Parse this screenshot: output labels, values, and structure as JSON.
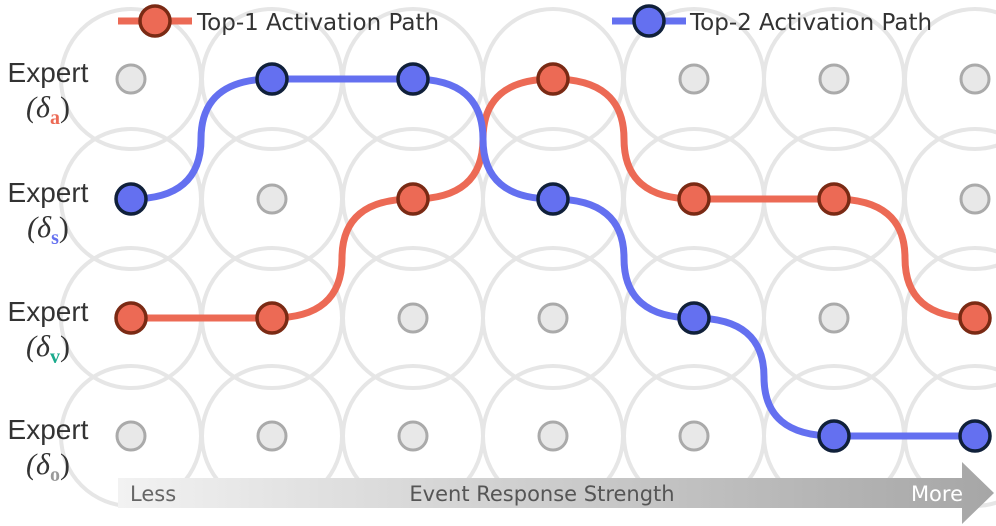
{
  "legend": {
    "items": [
      {
        "label": "Top-1 Activation Path"
      },
      {
        "label": "Top-2 Activation Path"
      }
    ]
  },
  "experts": [
    {
      "label": "Expert",
      "prefix": "(δ",
      "sub": "a",
      "suffix": ")"
    },
    {
      "label": "Expert",
      "prefix": "(δ",
      "sub": "s",
      "suffix": ")"
    },
    {
      "label": "Expert",
      "prefix": "(δ",
      "sub": "v",
      "suffix": ")"
    },
    {
      "label": "Expert",
      "prefix": "(δ",
      "sub": "o",
      "suffix": ")"
    }
  ],
  "axis": {
    "start": "Less",
    "title": "Event Response Strength",
    "end": "More"
  }
}
